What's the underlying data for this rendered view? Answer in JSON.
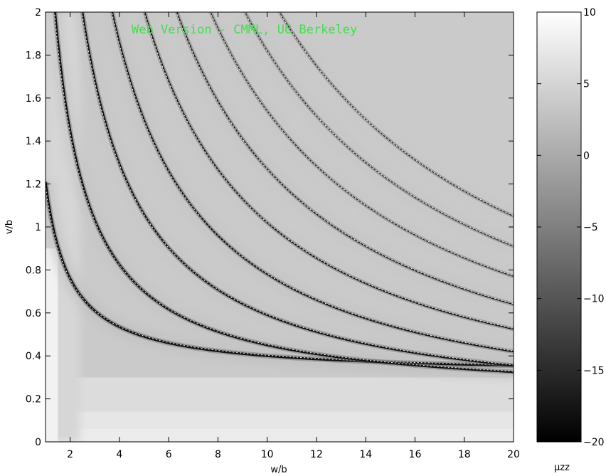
{
  "watermark": "Web Version - CMML, UC Berkeley",
  "chart_data": {
    "type": "heatmap",
    "title": "",
    "xlabel": "w/b",
    "ylabel": "v/b",
    "xlim": [
      1,
      20
    ],
    "ylim": [
      0,
      2
    ],
    "x_ticks": [
      "2",
      "4",
      "6",
      "8",
      "10",
      "12",
      "14",
      "16",
      "18",
      "20"
    ],
    "x_tick_values": [
      2,
      4,
      6,
      8,
      10,
      12,
      14,
      16,
      18,
      20
    ],
    "y_ticks": [
      "0",
      "0.2",
      "0.4",
      "0.6",
      "0.8",
      "1",
      "1.2",
      "1.4",
      "1.6",
      "1.8",
      "2"
    ],
    "y_tick_values": [
      0,
      0.2,
      0.4,
      0.6,
      0.8,
      1,
      1.2,
      1.4,
      1.6,
      1.8,
      2
    ],
    "colormap": "gray",
    "colorbar": {
      "label": "μzz",
      "clim": [
        -20,
        10
      ],
      "ticks": [
        "10",
        "5",
        "0",
        "−5",
        "−10",
        "−15",
        "−20"
      ],
      "tick_values": [
        10,
        5,
        0,
        -5,
        -10,
        -15,
        -20
      ]
    },
    "resonance_curves": [
      {
        "name": "",
        "k": 0.9,
        "offset": 0.31
      },
      {
        "name": "",
        "k": 2.5,
        "offset": 0.2
      },
      {
        "name": "",
        "k": 4.7,
        "offset": 0.12
      },
      {
        "name": "",
        "k": 7.2,
        "offset": 0.06
      },
      {
        "name": "",
        "k": 9.9,
        "offset": 0.03
      },
      {
        "name": "",
        "k": 12.6,
        "offset": 0.01
      },
      {
        "name": "",
        "k": 15.4,
        "offset": 0.0
      },
      {
        "name": "",
        "k": 18.2,
        "offset": 0.0
      },
      {
        "name": "",
        "k": 21.0,
        "offset": 0.0
      }
    ]
  }
}
